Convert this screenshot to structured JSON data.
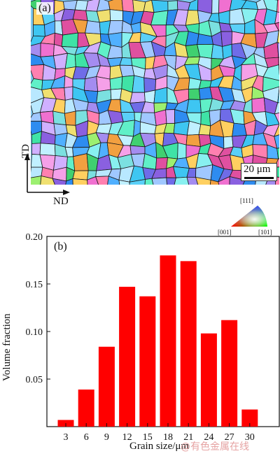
{
  "panel_a": {
    "label": "(a)",
    "scale_bar_label": "20 μm",
    "axis_td": "TD",
    "axis_nd": "ND",
    "ipf_key": {
      "top": "[111]",
      "left": "[001]",
      "right": "[101]"
    }
  },
  "watermark": "@有色金属在线",
  "chart_data": {
    "type": "bar",
    "panel_label": "(b)",
    "xlabel": "Grain size/μm",
    "ylabel": "Volume fraction",
    "categories": [
      "3",
      "6",
      "9",
      "12",
      "15",
      "18",
      "21",
      "24",
      "27",
      "30"
    ],
    "values": [
      0.007,
      0.039,
      0.084,
      0.147,
      0.137,
      0.18,
      0.174,
      0.098,
      0.112,
      0.018
    ],
    "ylim": [
      0,
      0.2
    ],
    "yticks": [
      "0.05",
      "0.10",
      "0.15",
      "0.20"
    ],
    "ytick_values": [
      0.05,
      0.1,
      0.15,
      0.2
    ],
    "bar_color": "#ff0000",
    "grid": false
  }
}
